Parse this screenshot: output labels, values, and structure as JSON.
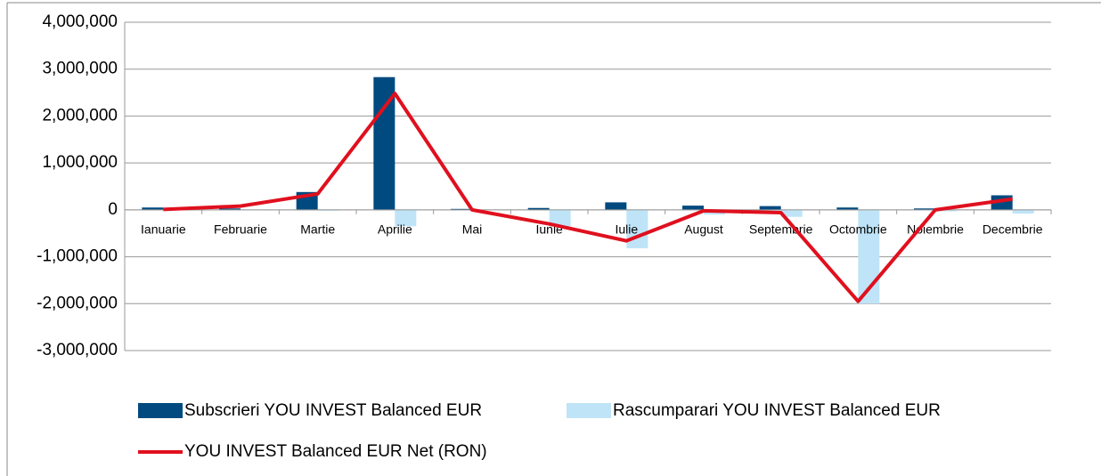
{
  "chart_data": {
    "type": "bar-line",
    "categories": [
      "Ianuarie",
      "Februarie",
      "Martie",
      "Aprilie",
      "Mai",
      "Iunie",
      "Iulie",
      "August",
      "Septembrie",
      "Octombrie",
      "Noiembrie",
      "Decembrie"
    ],
    "series": [
      {
        "name": "Subscrieri YOU INVEST Balanced EUR",
        "type": "bar",
        "color": "#004a7f",
        "values": [
          50000,
          30000,
          380000,
          2830000,
          20000,
          40000,
          160000,
          90000,
          80000,
          50000,
          30000,
          310000
        ]
      },
      {
        "name": "Rascumparari YOU INVEST Balanced EUR",
        "type": "bar",
        "color": "#bfe4f8",
        "values": [
          -10000,
          -10000,
          -20000,
          -350000,
          -10000,
          -350000,
          -820000,
          -100000,
          -150000,
          -2000000,
          -30000,
          -80000
        ]
      },
      {
        "name": "YOU INVEST Balanced EUR Net (RON)",
        "type": "line",
        "color": "#e0101e",
        "values": [
          10000,
          80000,
          340000,
          2480000,
          0,
          -300000,
          -660000,
          -20000,
          -60000,
          -1950000,
          0,
          230000
        ]
      }
    ],
    "ylim": [
      -3000000,
      4000000
    ],
    "yticks": [
      {
        "value": -3000000,
        "label": "-3,000,000"
      },
      {
        "value": -2000000,
        "label": "-2,000,000"
      },
      {
        "value": -1000000,
        "label": "-1,000,000"
      },
      0,
      {
        "value": 1000000,
        "label": "1,000,000"
      },
      {
        "value": 2000000,
        "label": "2,000,000"
      },
      {
        "value": 3000000,
        "label": "3,000,000"
      },
      {
        "value": 4000000,
        "label": "4,000,000"
      }
    ],
    "grid": true
  }
}
